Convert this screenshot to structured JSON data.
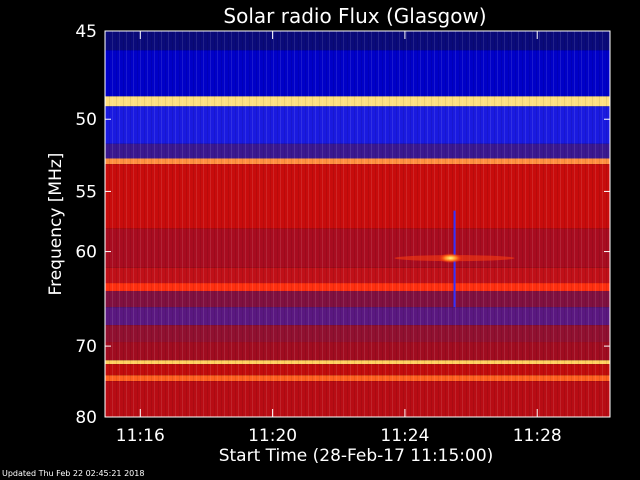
{
  "chart_data": {
    "type": "heatmap",
    "title": "Solar radio Flux (Glasgow)",
    "xlabel": "Start Time (28-Feb-17 11:15:00)",
    "ylabel": "Frequency [MHz]",
    "x_unit": "time",
    "xlim": [
      "11:14:56",
      "11:30:12"
    ],
    "ylim": [
      45,
      80
    ],
    "x_ticks": [
      {
        "label": "11:16",
        "value": "11:16:00"
      },
      {
        "label": "11:20",
        "value": "11:20:00"
      },
      {
        "label": "11:24",
        "value": "11:24:00"
      },
      {
        "label": "11:28",
        "value": "11:28:00"
      }
    ],
    "y_ticks": [
      {
        "label": "45",
        "value": 45
      },
      {
        "label": "50",
        "value": 50
      },
      {
        "label": "55",
        "value": 55
      },
      {
        "label": "60",
        "value": 60
      },
      {
        "label": "70",
        "value": 70
      },
      {
        "label": "80",
        "value": 80
      }
    ],
    "frequency_bands": [
      {
        "from_mhz": 45.0,
        "to_mhz": 46.0,
        "color": "#0a0a7a"
      },
      {
        "from_mhz": 46.0,
        "to_mhz": 48.6,
        "color": "#0000c8"
      },
      {
        "from_mhz": 48.6,
        "to_mhz": 49.2,
        "color": "#ffe080"
      },
      {
        "from_mhz": 49.2,
        "to_mhz": 51.6,
        "color": "#1a1ae0"
      },
      {
        "from_mhz": 51.6,
        "to_mhz": 52.6,
        "color": "#3a1890"
      },
      {
        "from_mhz": 52.6,
        "to_mhz": 53.0,
        "color": "#ff9040"
      },
      {
        "from_mhz": 53.0,
        "to_mhz": 58.0,
        "color": "#c80c0c"
      },
      {
        "from_mhz": 58.0,
        "to_mhz": 61.5,
        "color": "#a80c20"
      },
      {
        "from_mhz": 61.5,
        "to_mhz": 63.0,
        "color": "#c01018"
      },
      {
        "from_mhz": 63.0,
        "to_mhz": 63.8,
        "color": "#ff3010"
      },
      {
        "from_mhz": 63.8,
        "to_mhz": 65.5,
        "color": "#801040"
      },
      {
        "from_mhz": 65.5,
        "to_mhz": 67.5,
        "color": "#5a1880"
      },
      {
        "from_mhz": 67.5,
        "to_mhz": 69.5,
        "color": "#901030"
      },
      {
        "from_mhz": 69.5,
        "to_mhz": 71.8,
        "color": "#a00c20"
      },
      {
        "from_mhz": 71.8,
        "to_mhz": 72.3,
        "color": "#ffd060"
      },
      {
        "from_mhz": 72.3,
        "to_mhz": 73.8,
        "color": "#c00c0c"
      },
      {
        "from_mhz": 73.8,
        "to_mhz": 74.6,
        "color": "#ff6020"
      },
      {
        "from_mhz": 74.6,
        "to_mhz": 80.0,
        "color": "#b80c14"
      }
    ],
    "burst": {
      "time": "11:25:30",
      "from_mhz": 56.5,
      "to_mhz": 65.5,
      "peak_mhz": 60.6,
      "peak_color": "#ffff80"
    },
    "colors": {
      "background": "#000000",
      "frame": "#ffffff",
      "text": "#ffffff"
    }
  },
  "footer": {
    "updated": "Updated Thu Feb 22 02:45:21 2018"
  }
}
